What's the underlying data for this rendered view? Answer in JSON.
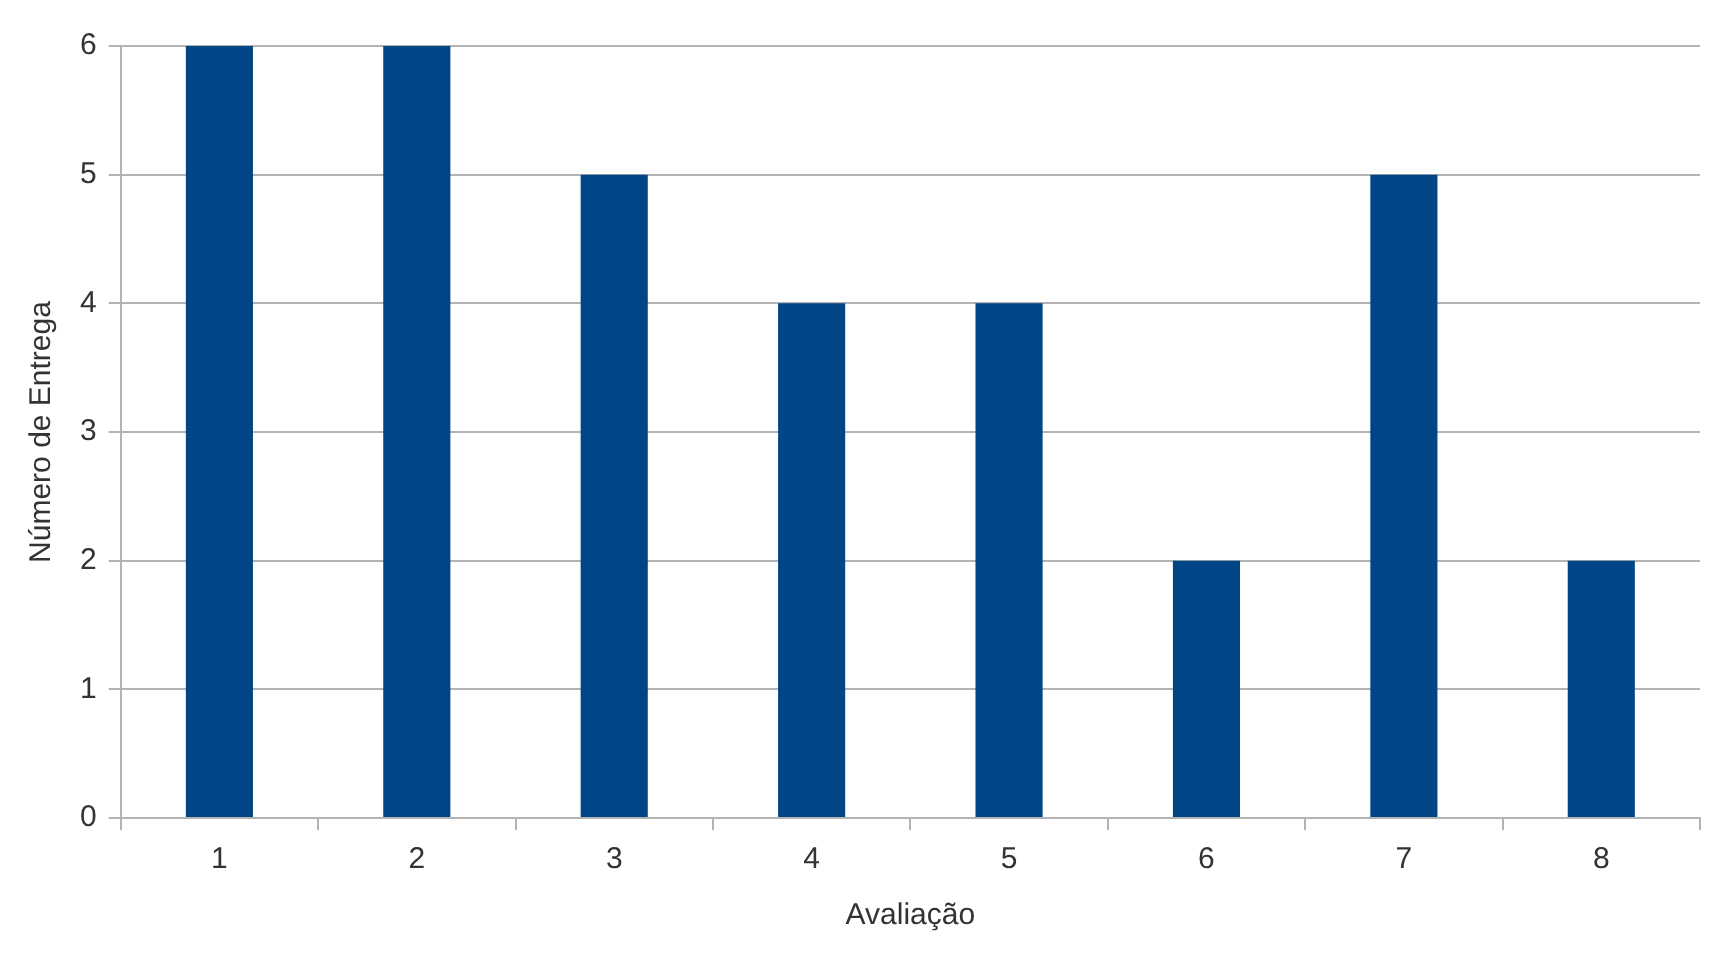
{
  "chart_data": {
    "type": "bar",
    "xlabel": "Avaliação",
    "ylabel": "Número de Entrega",
    "categories": [
      "1",
      "2",
      "3",
      "4",
      "5",
      "6",
      "7",
      "8"
    ],
    "values": [
      6,
      6,
      5,
      4,
      4,
      2,
      5,
      2
    ],
    "color": "#004586",
    "ylim": [
      0,
      6
    ],
    "yticks": [
      0,
      1,
      2,
      3,
      4,
      5,
      6
    ],
    "grid": "y",
    "legend": false
  }
}
